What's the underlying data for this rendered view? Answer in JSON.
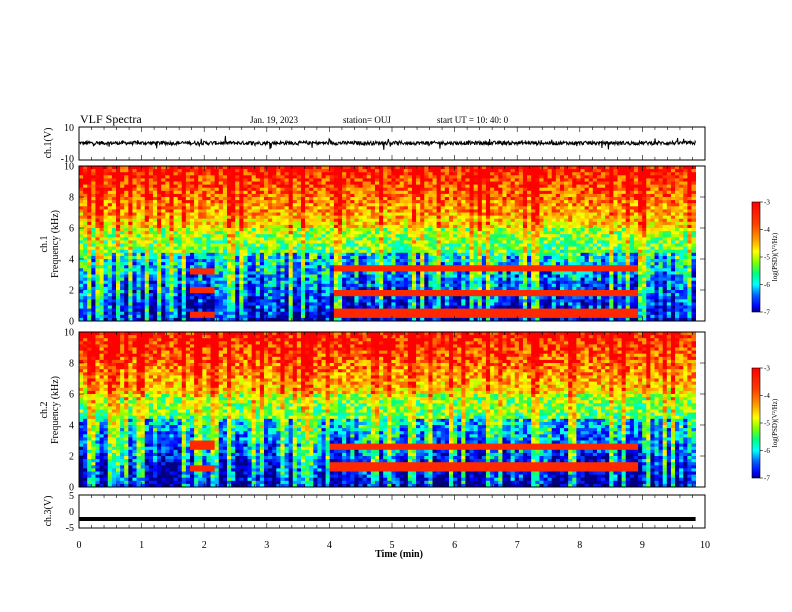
{
  "header": {
    "title": "VLF Spectra",
    "date": "Jan. 19, 2023",
    "station": "station= OUJ",
    "start": "start  UT =   10: 40: 0"
  },
  "chart_data": [
    {
      "type": "line",
      "panel": "ch1-waveform",
      "ylabel": "ch.1(V)",
      "xlim": [
        0,
        10
      ],
      "ylim": [
        -10,
        10
      ],
      "yticks": [
        10,
        -10
      ],
      "description_level_V": 0
    },
    {
      "type": "heatmap",
      "panel": "ch1-spectrogram",
      "ylabel": "ch.1\nFrequency (kHz)",
      "ylabel_line1": "ch.1",
      "ylabel_line2": "Frequency (kHz)",
      "xlim": [
        0,
        10
      ],
      "ylim": [
        0,
        10
      ],
      "yticks": [
        0,
        2,
        4,
        6,
        8,
        10
      ],
      "data_end_min": 9.85,
      "colorbar": {
        "label": "log(PSD)(V²/Hz)",
        "ticks": [
          -3,
          -4,
          -5,
          -6,
          -7
        ],
        "range": [
          -7,
          -3
        ]
      },
      "events": [
        {
          "t0": 1.75,
          "t1": 2.15,
          "f_khz": [
            3.2,
            2.0,
            0.4
          ]
        },
        {
          "t0": 4.1,
          "t1": 8.9,
          "f_khz": [
            3.4,
            1.8,
            0.5
          ]
        }
      ]
    },
    {
      "type": "heatmap",
      "panel": "ch2-spectrogram",
      "ylabel_line1": "ch.2",
      "ylabel_line2": "Frequency (kHz)",
      "xlim": [
        0,
        10
      ],
      "ylim": [
        0,
        10
      ],
      "yticks": [
        0,
        2,
        4,
        6,
        8,
        10
      ],
      "data_end_min": 9.85,
      "colorbar": {
        "label": "log(PSD)(V²/Hz)",
        "ticks": [
          -3,
          -4,
          -5,
          -6,
          -7
        ],
        "range": [
          -7,
          -3
        ]
      },
      "events": [
        {
          "t0": 1.75,
          "t1": 2.15,
          "f_khz": [
            2.7,
            1.2
          ]
        },
        {
          "t0": 4.0,
          "t1": 8.9,
          "f_khz": [
            2.6,
            1.3
          ]
        }
      ]
    },
    {
      "type": "line",
      "panel": "ch3-waveform",
      "ylabel": "ch.3(V)",
      "xlim": [
        0,
        10
      ],
      "ylim": [
        -5,
        5
      ],
      "yticks": [
        5,
        0,
        -5
      ],
      "level_V": -2.5
    }
  ],
  "xaxis": {
    "label": "Time (min)",
    "ticks": [
      "0",
      "1",
      "2",
      "3",
      "4",
      "5",
      "6",
      "7",
      "8",
      "9",
      "10"
    ]
  },
  "colors": {
    "scale": [
      "#8b0000",
      "#ff0000",
      "#ff8c00",
      "#ffff00",
      "#7fff00",
      "#00ff80",
      "#00ffff",
      "#0080ff",
      "#0000ff",
      "#00008b"
    ]
  }
}
